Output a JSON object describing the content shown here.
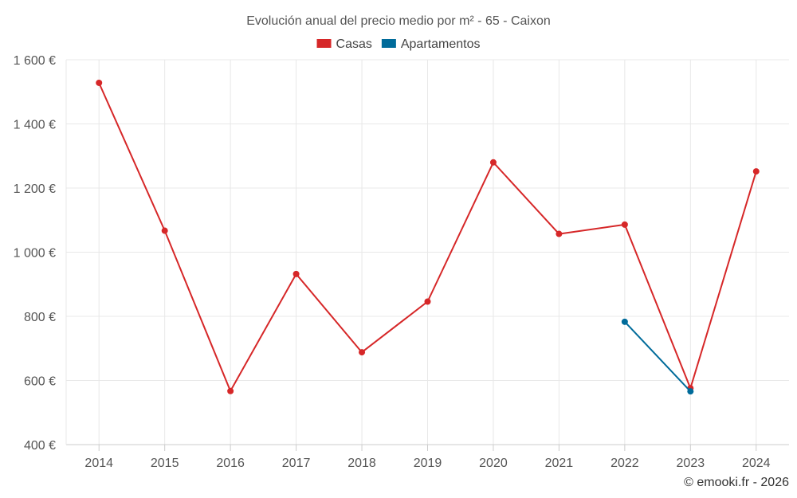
{
  "chart_data": {
    "type": "line",
    "title": "Evolución anual del precio medio por m² - 65 - Caixon",
    "categories": [
      "2014",
      "2015",
      "2016",
      "2017",
      "2018",
      "2019",
      "2020",
      "2021",
      "2022",
      "2023",
      "2024"
    ],
    "series": [
      {
        "name": "Casas",
        "color": "#d62728",
        "values": [
          1528,
          1067,
          567,
          932,
          688,
          846,
          1280,
          1057,
          1086,
          576,
          1252
        ]
      },
      {
        "name": "Apartamentos",
        "color": "#006b9a",
        "values": [
          null,
          null,
          null,
          null,
          null,
          null,
          null,
          null,
          783,
          566,
          null
        ]
      }
    ],
    "ylim": [
      400,
      1600
    ],
    "yticks": [
      {
        "value": 400,
        "label": "400 €"
      },
      {
        "value": 600,
        "label": "600 €"
      },
      {
        "value": 800,
        "label": "800 €"
      },
      {
        "value": 1000,
        "label": "1 000 €"
      },
      {
        "value": 1200,
        "label": "1 200 €"
      },
      {
        "value": 1400,
        "label": "1 400 €"
      },
      {
        "value": 1600,
        "label": "1 600 €"
      }
    ],
    "xlabel": "",
    "ylabel": "",
    "grid": true,
    "legend_position": "top-center"
  },
  "credit": "© emooki.fr - 2026"
}
